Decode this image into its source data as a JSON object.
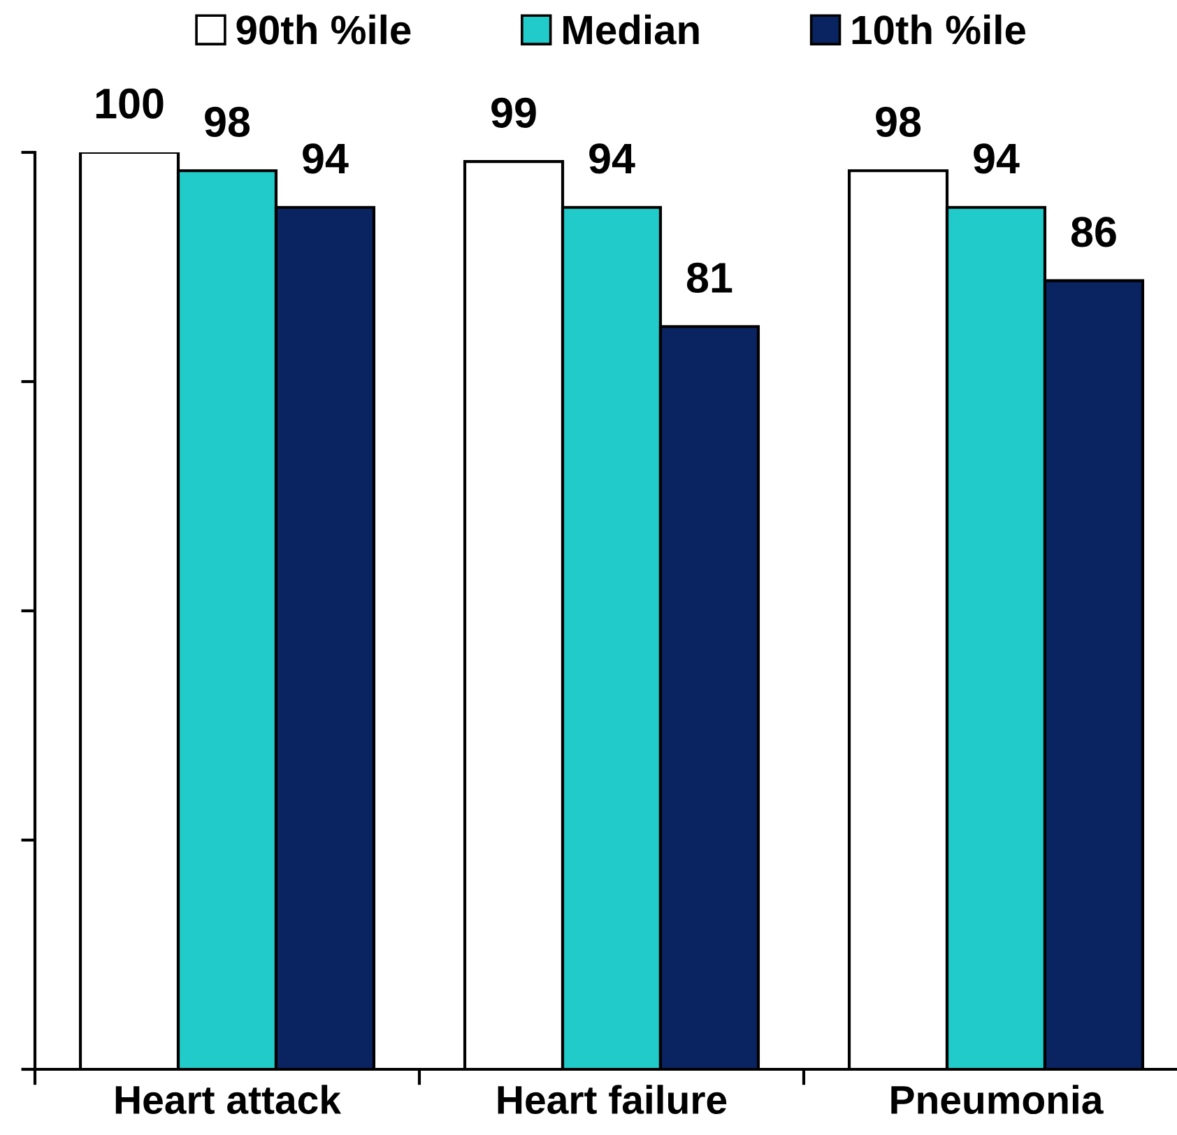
{
  "chart_data": {
    "type": "bar",
    "categories": [
      "Heart attack",
      "Heart failure",
      "Pneumonia"
    ],
    "series": [
      {
        "name": "90th %ile",
        "color": "#ffffff",
        "values": [
          100,
          99,
          98
        ]
      },
      {
        "name": "Median",
        "color": "#20cbc9",
        "values": [
          98,
          94,
          94
        ]
      },
      {
        "name": "10th %ile",
        "color": "#0a2462",
        "values": [
          94,
          81,
          86
        ]
      }
    ],
    "ylim": [
      0,
      100
    ],
    "yticks": [
      {
        "value": 0,
        "label": null
      },
      {
        "value": 25,
        "label": null
      },
      {
        "value": 50,
        "label": null
      },
      {
        "value": 75,
        "label": null
      },
      {
        "value": 100,
        "label": null
      }
    ],
    "tick_labels": "x",
    "data_labels": true,
    "legend": "top"
  }
}
